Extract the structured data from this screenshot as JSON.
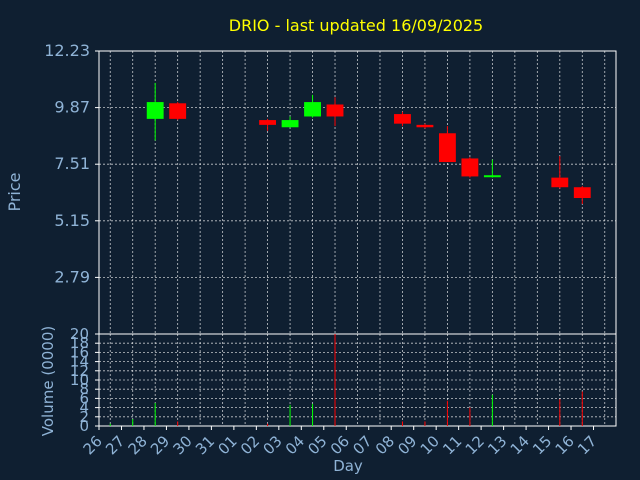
{
  "chart_data": {
    "type": "candlestick",
    "title": "DRIO - last updated 16/09/2025",
    "xlabel": "Day",
    "ylabel": "Price",
    "volume_label": "Volume (0000)",
    "colors": {
      "background": "#0f1f31",
      "plot_bg": "#0f1f31",
      "axis": "#ffffff",
      "text": "#8fb3d6",
      "title": "#ffff00",
      "grid": "#ffffff",
      "up": "#00ff00",
      "down": "#ff0000"
    },
    "price_ticks": [
      "2.79",
      "5.15",
      "7.51",
      "9.87",
      "12.23"
    ],
    "price_ylim": [
      0.43,
      12.23
    ],
    "volume_ticks": [
      "0",
      "2",
      "4",
      "6",
      "8",
      "10",
      "12",
      "14",
      "16",
      "18",
      "20"
    ],
    "volume_ylim": [
      0,
      20
    ],
    "x_ticks": [
      "26",
      "27",
      "28",
      "29",
      "30",
      "31",
      "01",
      "02",
      "03",
      "04",
      "05",
      "06",
      "07",
      "08",
      "09",
      "10",
      "11",
      "12",
      "13",
      "14",
      "15",
      "16",
      "17"
    ],
    "candles": [
      {
        "day": "26",
        "open": 0.43,
        "high": 0.45,
        "low": 0.4,
        "close": 0.43,
        "volume": 0.5
      },
      {
        "day": "27",
        "open": 0.43,
        "high": 0.45,
        "low": 0.4,
        "close": 0.43,
        "volume": 1.5
      },
      {
        "day": "28",
        "open": 9.4,
        "high": 10.9,
        "low": 8.5,
        "close": 10.1,
        "volume": 5.0
      },
      {
        "day": "29",
        "open": 10.05,
        "high": 10.1,
        "low": 9.35,
        "close": 9.4,
        "volume": 1.0
      },
      {
        "day": "02",
        "open": 9.35,
        "high": 9.4,
        "low": 8.9,
        "close": 9.15,
        "volume": 0.5
      },
      {
        "day": "03",
        "open": 9.05,
        "high": 9.5,
        "low": 9.05,
        "close": 9.35,
        "volume": 4.6
      },
      {
        "day": "04",
        "open": 9.5,
        "high": 10.4,
        "low": 9.45,
        "close": 10.1,
        "volume": 4.8
      },
      {
        "day": "05",
        "open": 10.0,
        "high": 10.3,
        "low": 9.1,
        "close": 9.5,
        "volume": 20.0
      },
      {
        "day": "08",
        "open": 9.6,
        "high": 9.7,
        "low": 9.1,
        "close": 9.2,
        "volume": 1.0
      },
      {
        "day": "09",
        "open": 9.15,
        "high": 9.2,
        "low": 9.0,
        "close": 9.05,
        "volume": 1.0
      },
      {
        "day": "10",
        "open": 8.8,
        "high": 9.1,
        "low": 7.6,
        "close": 7.6,
        "volume": 5.5
      },
      {
        "day": "11",
        "open": 7.75,
        "high": 7.8,
        "low": 6.95,
        "close": 7.0,
        "volume": 4.0
      },
      {
        "day": "12",
        "open": 7.0,
        "high": 7.7,
        "low": 6.95,
        "close": 7.05,
        "volume": 6.8
      },
      {
        "day": "15",
        "open": 6.95,
        "high": 7.85,
        "low": 6.5,
        "close": 6.55,
        "volume": 5.8
      },
      {
        "day": "16",
        "open": 6.55,
        "high": 6.6,
        "low": 5.85,
        "close": 6.1,
        "volume": 7.5
      }
    ]
  }
}
